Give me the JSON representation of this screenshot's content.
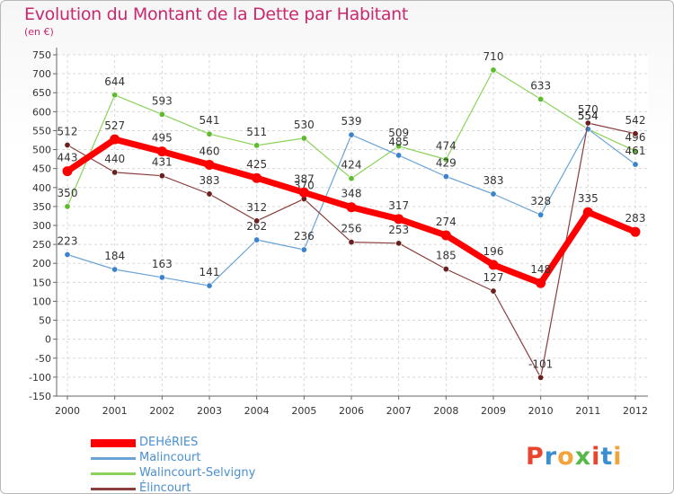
{
  "title": "Evolution du Montant de la Dette par Habitant",
  "unit": "(en €)",
  "logo": {
    "text": "Proxiti",
    "colors": [
      "#e8452c",
      "#3a8fd1",
      "#f2a33a",
      "#56b848",
      "#e8452c",
      "#3a8fd1",
      "#f2a33a"
    ]
  },
  "chart_data": {
    "type": "line",
    "x": [
      "2000",
      "2001",
      "2002",
      "2003",
      "2004",
      "2005",
      "2006",
      "2007",
      "2008",
      "2009",
      "2010",
      "2011",
      "2012"
    ],
    "ylim": [
      -150,
      750
    ],
    "yticks": [
      -150,
      -100,
      -50,
      0,
      50,
      100,
      150,
      200,
      250,
      300,
      350,
      400,
      450,
      500,
      550,
      600,
      650,
      700,
      750
    ],
    "grid": true,
    "legend_position": "bottom-left",
    "series": [
      {
        "name": "Walincourt-Selvigny",
        "color": "#8cd25a",
        "marker": "#5fbb2e",
        "width": 1.2,
        "values": [
          350,
          644,
          593,
          541,
          511,
          530,
          424,
          509,
          474,
          710,
          633,
          554,
          496
        ],
        "labels": [
          "350",
          "644",
          "593",
          "541",
          "511",
          "530",
          "424",
          "509",
          "474",
          "710",
          "633",
          "554",
          "496"
        ]
      },
      {
        "name": "Malincourt",
        "color": "#6aa3d8",
        "marker": "#3a84cf",
        "width": 1.2,
        "values": [
          223,
          184,
          163,
          141,
          262,
          236,
          539,
          485,
          429,
          383,
          328,
          554,
          461
        ],
        "labels": [
          "223",
          "184",
          "163",
          "141",
          "262",
          "236",
          "539",
          "485",
          "429",
          "383",
          "328",
          "554",
          "461"
        ]
      },
      {
        "name": "Élincourt",
        "color": "#8a3e3e",
        "marker": "#6b1f1f",
        "width": 1.2,
        "values": [
          512,
          440,
          431,
          383,
          312,
          370,
          256,
          253,
          185,
          127,
          -101,
          570,
          542
        ],
        "labels": [
          "512",
          "440",
          "431",
          "383",
          "312",
          "370",
          "256",
          "253",
          "185",
          "127",
          "-101",
          "570",
          "542"
        ]
      },
      {
        "name": "DEHéRIES",
        "color": "#ff0000",
        "marker": "#ff0000",
        "width": 7,
        "values": [
          443,
          527,
          495,
          460,
          425,
          387,
          348,
          317,
          274,
          196,
          148,
          335,
          283
        ],
        "labels": [
          "443",
          "527",
          "495",
          "460",
          "425",
          "387",
          "348",
          "317",
          "274",
          "196",
          "148",
          "335",
          "283"
        ]
      }
    ],
    "legend": [
      {
        "name": "DEHéRIES",
        "color": "#ff0000",
        "thick": true
      },
      {
        "name": "Malincourt",
        "color": "#6aa3d8",
        "thick": false
      },
      {
        "name": "Walincourt-Selvigny",
        "color": "#8cd25a",
        "thick": false
      },
      {
        "name": "Élincourt",
        "color": "#8a3e3e",
        "thick": false
      }
    ]
  }
}
